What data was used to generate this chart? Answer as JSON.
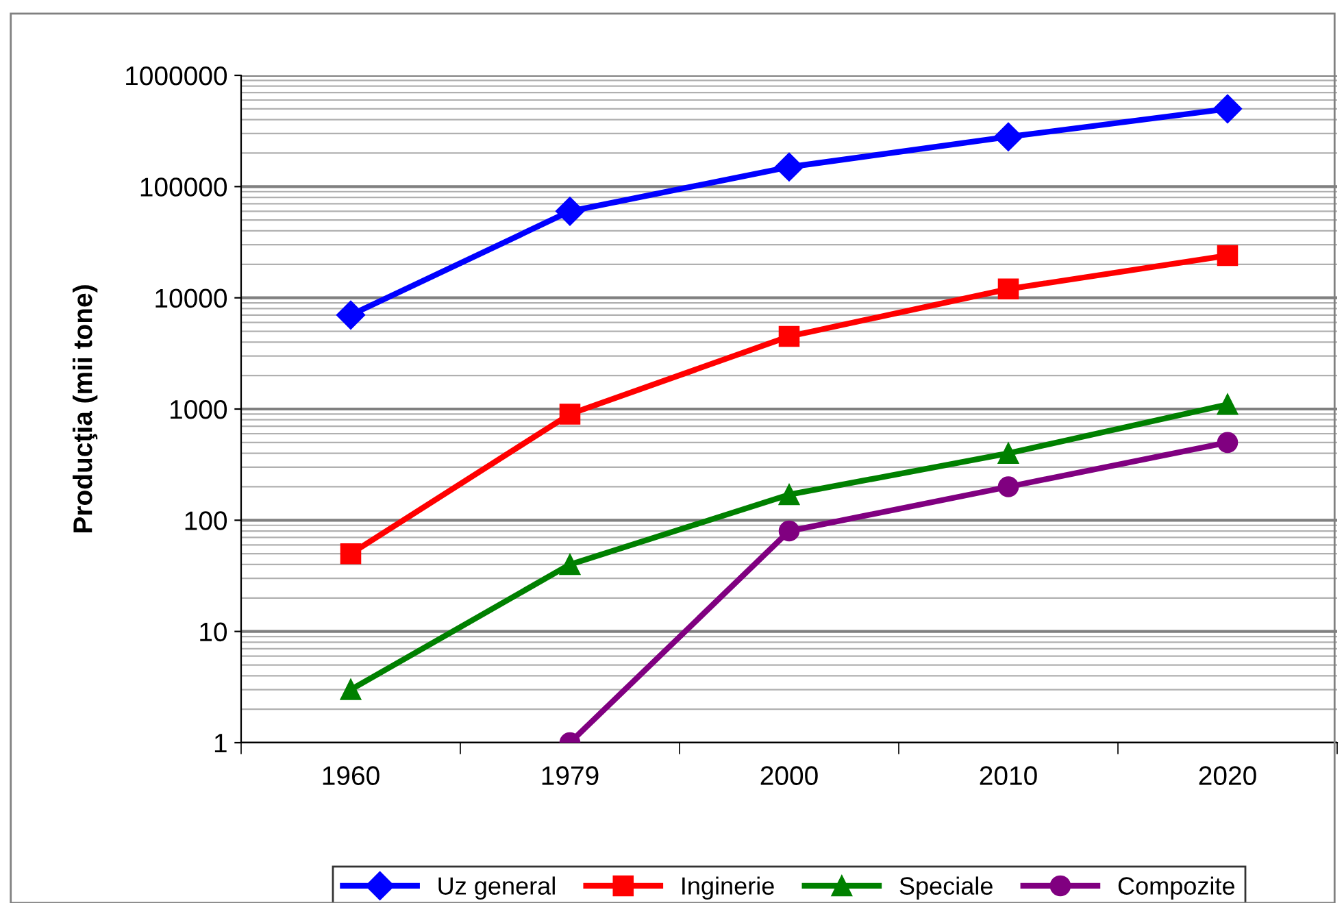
{
  "chart_data": {
    "type": "line",
    "ylabel": "Producţia (mii tone)",
    "categories": [
      "1960",
      "1979",
      "2000",
      "2010",
      "2020"
    ],
    "series": [
      {
        "name": "Uz general",
        "color": "#0000ff",
        "marker": "diamond",
        "values": [
          7000,
          60000,
          150000,
          280000,
          500000
        ]
      },
      {
        "name": "Inginerie",
        "color": "#ff0000",
        "marker": "square",
        "values": [
          50,
          900,
          4500,
          12000,
          24000
        ]
      },
      {
        "name": "Speciale",
        "color": "#008000",
        "marker": "triangle",
        "values": [
          3,
          40,
          170,
          400,
          1100
        ]
      },
      {
        "name": "Compozite",
        "color": "#800080",
        "marker": "circle",
        "values": [
          null,
          1,
          80,
          200,
          500
        ]
      }
    ],
    "log": "y",
    "ylim": [
      1,
      1000000
    ],
    "yticks": [
      1,
      10,
      100,
      1000,
      10000,
      100000,
      1000000
    ],
    "grid": "y",
    "legend": "bottom",
    "line_style": "solid"
  }
}
